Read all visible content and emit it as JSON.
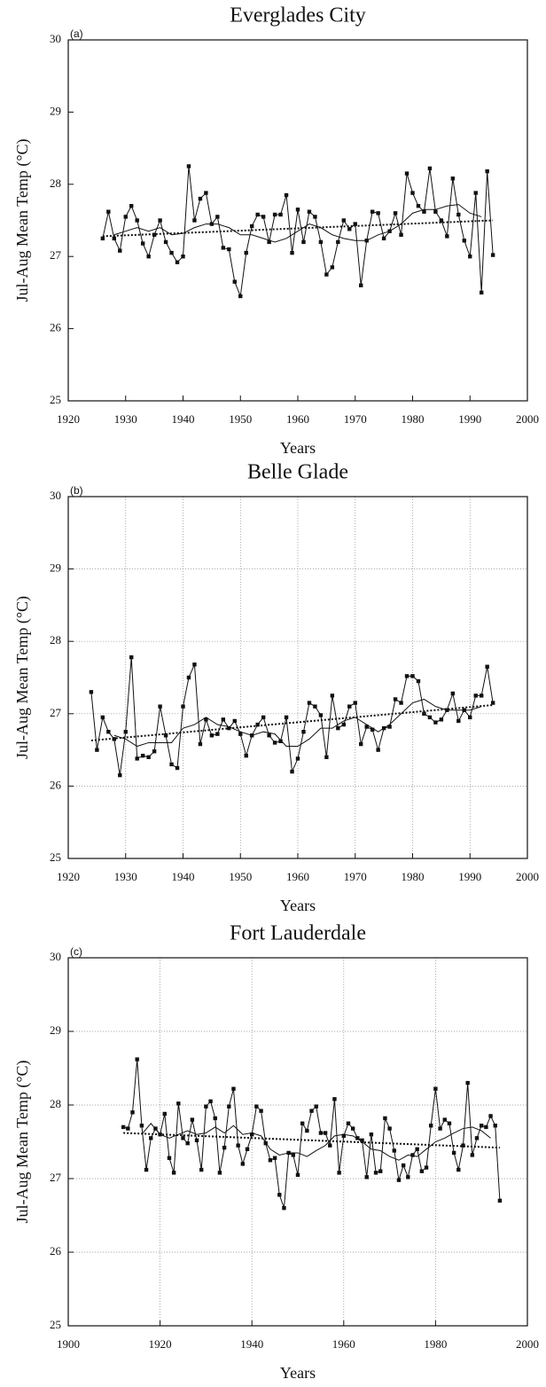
{
  "chart_data": [
    {
      "type": "line",
      "title": "Everglades City",
      "panel_label": "(a)",
      "xlabel": "Years",
      "ylabel": "Jul-Aug Mean Temp (°C)",
      "xlim": [
        1920,
        2000
      ],
      "xticks": [
        1920,
        1930,
        1940,
        1950,
        1960,
        1970,
        1980,
        1990,
        2000
      ],
      "ylim": [
        25,
        30
      ],
      "yticks": [
        25,
        26,
        27,
        28,
        29,
        30
      ],
      "grid": false,
      "series": [
        {
          "color": "#111111",
          "marker": "square",
          "x": [
            1926,
            1927,
            1928,
            1929,
            1930,
            1931,
            1932,
            1933,
            1934,
            1935,
            1936,
            1937,
            1938,
            1939,
            1940,
            1941,
            1942,
            1943,
            1944,
            1945,
            1946,
            1947,
            1948,
            1949,
            1950,
            1951,
            1952,
            1953,
            1954,
            1955,
            1956,
            1957,
            1958,
            1959,
            1960,
            1961,
            1962,
            1963,
            1964,
            1965,
            1966,
            1967,
            1968,
            1969,
            1970,
            1971,
            1972,
            1973,
            1974,
            1975,
            1976,
            1977,
            1978,
            1979,
            1980,
            1981,
            1982,
            1983,
            1984,
            1985,
            1986,
            1987,
            1988,
            1989,
            1990,
            1991,
            1992,
            1993,
            1994
          ],
          "values": [
            27.25,
            27.62,
            27.25,
            27.08,
            27.55,
            27.7,
            27.5,
            27.18,
            27.0,
            27.3,
            27.5,
            27.2,
            27.05,
            26.92,
            27.0,
            28.25,
            27.5,
            27.8,
            27.88,
            27.45,
            27.55,
            27.12,
            27.1,
            26.65,
            26.45,
            27.05,
            27.42,
            27.58,
            27.55,
            27.2,
            27.58,
            27.58,
            27.85,
            27.05,
            27.65,
            27.2,
            27.62,
            27.55,
            27.2,
            26.75,
            26.85,
            27.2,
            27.5,
            27.38,
            27.45,
            26.6,
            27.22,
            27.62,
            27.6,
            27.25,
            27.35,
            27.6,
            27.3,
            28.15,
            27.88,
            27.7,
            27.62,
            28.22,
            27.62,
            27.5,
            27.28,
            28.08,
            27.58,
            27.22,
            27.0,
            27.88,
            26.5,
            28.18,
            27.02
          ]
        },
        {
          "color": "#111111",
          "marker": "none",
          "x": [
            1928,
            1930,
            1932,
            1934,
            1936,
            1938,
            1940,
            1942,
            1944,
            1946,
            1948,
            1950,
            1952,
            1954,
            1956,
            1958,
            1960,
            1962,
            1964,
            1966,
            1968,
            1970,
            1972,
            1974,
            1976,
            1978,
            1980,
            1982,
            1984,
            1986,
            1988,
            1990,
            1992
          ],
          "values": [
            27.3,
            27.35,
            27.4,
            27.35,
            27.4,
            27.3,
            27.32,
            27.4,
            27.45,
            27.45,
            27.4,
            27.3,
            27.3,
            27.25,
            27.2,
            27.25,
            27.35,
            27.45,
            27.4,
            27.3,
            27.25,
            27.22,
            27.22,
            27.3,
            27.35,
            27.45,
            27.6,
            27.65,
            27.65,
            27.7,
            27.72,
            27.6,
            27.55
          ]
        },
        {
          "color": "#111111",
          "marker": "dot",
          "x": [
            1926,
            1994
          ],
          "values": [
            27.28,
            27.5
          ]
        }
      ]
    },
    {
      "type": "line",
      "title": "Belle Glade",
      "panel_label": "(b)",
      "xlabel": "Years",
      "ylabel": "Jul-Aug Mean Temp (°C)",
      "xlim": [
        1920,
        2000
      ],
      "xticks": [
        1920,
        1930,
        1940,
        1950,
        1960,
        1970,
        1980,
        1990,
        2000
      ],
      "ylim": [
        25,
        30
      ],
      "yticks": [
        25,
        26,
        27,
        28,
        29,
        30
      ],
      "grid": true,
      "series": [
        {
          "color": "#111111",
          "marker": "square",
          "x": [
            1924,
            1925,
            1926,
            1927,
            1928,
            1929,
            1930,
            1931,
            1932,
            1933,
            1934,
            1935,
            1936,
            1937,
            1938,
            1939,
            1940,
            1941,
            1942,
            1943,
            1944,
            1945,
            1946,
            1947,
            1948,
            1949,
            1950,
            1951,
            1952,
            1953,
            1954,
            1955,
            1956,
            1957,
            1958,
            1959,
            1960,
            1961,
            1962,
            1963,
            1964,
            1965,
            1966,
            1967,
            1968,
            1969,
            1970,
            1971,
            1972,
            1973,
            1974,
            1975,
            1976,
            1977,
            1978,
            1979,
            1980,
            1981,
            1982,
            1983,
            1984,
            1985,
            1986,
            1987,
            1988,
            1989,
            1990,
            1991,
            1992,
            1993,
            1994
          ],
          "values": [
            27.3,
            26.5,
            26.95,
            26.75,
            26.65,
            26.15,
            26.75,
            27.78,
            26.38,
            26.42,
            26.4,
            26.48,
            27.1,
            26.7,
            26.3,
            26.25,
            27.1,
            27.5,
            27.68,
            26.58,
            26.92,
            26.7,
            26.72,
            26.92,
            26.8,
            26.9,
            26.72,
            26.42,
            26.7,
            26.85,
            26.95,
            26.7,
            26.6,
            26.62,
            26.95,
            26.2,
            26.38,
            26.75,
            27.15,
            27.1,
            26.98,
            26.4,
            27.25,
            26.8,
            26.85,
            27.1,
            27.15,
            26.58,
            26.82,
            26.78,
            26.5,
            26.8,
            26.82,
            27.2,
            27.15,
            27.52,
            27.52,
            27.45,
            27.0,
            26.95,
            26.88,
            26.92,
            27.05,
            27.28,
            26.9,
            27.05,
            26.95,
            27.25,
            27.25,
            27.65,
            27.15
          ]
        },
        {
          "color": "#111111",
          "marker": "none",
          "x": [
            1928,
            1930,
            1932,
            1934,
            1936,
            1938,
            1940,
            1942,
            1944,
            1946,
            1948,
            1950,
            1952,
            1954,
            1956,
            1958,
            1960,
            1962,
            1964,
            1966,
            1968,
            1970,
            1972,
            1974,
            1976,
            1978,
            1980,
            1982,
            1984,
            1986,
            1988,
            1990,
            1992
          ],
          "values": [
            26.7,
            26.65,
            26.55,
            26.6,
            26.6,
            26.6,
            26.8,
            26.85,
            26.95,
            26.85,
            26.82,
            26.75,
            26.7,
            26.75,
            26.72,
            26.55,
            26.55,
            26.65,
            26.8,
            26.8,
            26.9,
            26.95,
            26.85,
            26.75,
            26.85,
            27.0,
            27.15,
            27.2,
            27.1,
            27.05,
            27.05,
            27.05,
            27.1
          ]
        },
        {
          "color": "#111111",
          "marker": "dot",
          "x": [
            1924,
            1994
          ],
          "values": [
            26.63,
            27.12
          ]
        }
      ]
    },
    {
      "type": "line",
      "title": "Fort Lauderdale",
      "panel_label": "(c)",
      "xlabel": "Years",
      "ylabel": "Jul-Aug Mean Temp (°C)",
      "xlim": [
        1900,
        2000
      ],
      "xticks": [
        1900,
        1920,
        1940,
        1960,
        1980,
        2000
      ],
      "ylim": [
        25,
        30
      ],
      "yticks": [
        25,
        26,
        27,
        28,
        29,
        30
      ],
      "grid": true,
      "series": [
        {
          "color": "#111111",
          "marker": "square",
          "x": [
            1912,
            1913,
            1914,
            1915,
            1916,
            1917,
            1918,
            1919,
            1920,
            1921,
            1922,
            1923,
            1924,
            1925,
            1926,
            1927,
            1928,
            1929,
            1930,
            1931,
            1932,
            1933,
            1934,
            1935,
            1936,
            1937,
            1938,
            1939,
            1940,
            1941,
            1942,
            1943,
            1944,
            1945,
            1946,
            1947,
            1948,
            1949,
            1950,
            1951,
            1952,
            1953,
            1954,
            1955,
            1956,
            1957,
            1958,
            1959,
            1960,
            1961,
            1962,
            1963,
            1964,
            1965,
            1966,
            1967,
            1968,
            1969,
            1970,
            1971,
            1972,
            1973,
            1974,
            1975,
            1976,
            1977,
            1978,
            1979,
            1980,
            1981,
            1982,
            1983,
            1984,
            1985,
            1986,
            1987,
            1988,
            1989,
            1990,
            1991,
            1992,
            1993,
            1994
          ],
          "values": [
            27.7,
            27.68,
            27.9,
            28.62,
            27.72,
            27.12,
            27.55,
            27.68,
            27.6,
            27.88,
            27.28,
            27.08,
            28.02,
            27.55,
            27.48,
            27.8,
            27.52,
            27.12,
            27.98,
            28.05,
            27.82,
            27.08,
            27.42,
            27.98,
            28.22,
            27.45,
            27.2,
            27.4,
            27.6,
            27.98,
            27.92,
            27.48,
            27.25,
            27.28,
            26.78,
            26.6,
            27.35,
            27.32,
            27.05,
            27.75,
            27.65,
            27.92,
            27.98,
            27.62,
            27.62,
            27.45,
            28.08,
            27.08,
            27.58,
            27.75,
            27.68,
            27.55,
            27.52,
            27.02,
            27.6,
            27.08,
            27.1,
            27.82,
            27.68,
            27.38,
            26.98,
            27.18,
            27.02,
            27.32,
            27.4,
            27.1,
            27.15,
            27.72,
            28.22,
            27.68,
            27.8,
            27.75,
            27.35,
            27.12,
            27.45,
            28.3,
            27.32,
            27.55,
            27.72,
            27.7,
            27.85,
            27.72,
            26.7
          ]
        },
        {
          "color": "#111111",
          "marker": "none",
          "x": [
            1916,
            1918,
            1920,
            1922,
            1924,
            1926,
            1928,
            1930,
            1932,
            1934,
            1936,
            1938,
            1940,
            1942,
            1944,
            1946,
            1948,
            1950,
            1952,
            1954,
            1956,
            1958,
            1960,
            1962,
            1964,
            1966,
            1968,
            1970,
            1972,
            1974,
            1976,
            1978,
            1980,
            1982,
            1984,
            1986,
            1988,
            1990,
            1992
          ],
          "values": [
            27.6,
            27.75,
            27.6,
            27.55,
            27.6,
            27.65,
            27.6,
            27.62,
            27.7,
            27.62,
            27.72,
            27.6,
            27.62,
            27.58,
            27.4,
            27.32,
            27.35,
            27.35,
            27.3,
            27.38,
            27.45,
            27.58,
            27.6,
            27.58,
            27.5,
            27.4,
            27.38,
            27.3,
            27.25,
            27.32,
            27.3,
            27.4,
            27.5,
            27.55,
            27.62,
            27.68,
            27.7,
            27.65,
            27.55
          ]
        },
        {
          "color": "#111111",
          "marker": "dot",
          "x": [
            1912,
            1994
          ],
          "values": [
            27.62,
            27.42
          ]
        }
      ]
    }
  ]
}
